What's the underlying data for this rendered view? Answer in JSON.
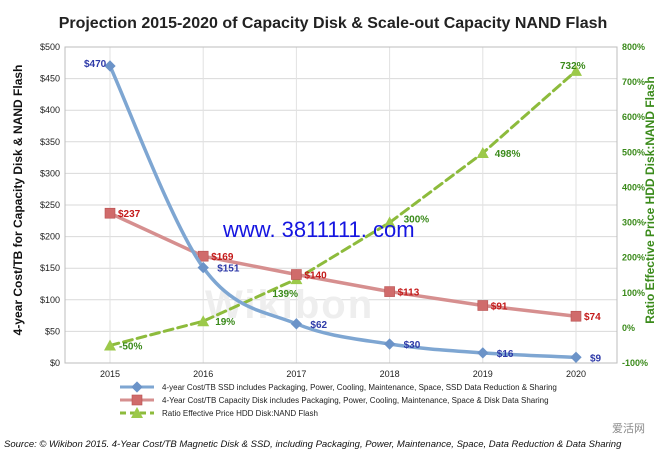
{
  "chart_data": {
    "type": "line",
    "title": "Projection 2015-2020 of Capacity Disk & Scale-out Capacity NAND Flash",
    "ylabel_left": "4-year Cost/TB for Capacity Disk & NAND Flash",
    "ylabel_right": "Ratio Effective Price HDD Disk:NAND Flash",
    "categories": [
      "2015",
      "2016",
      "2017",
      "2018",
      "2019",
      "2020"
    ],
    "left_ticks": [
      "$0",
      "$50",
      "$100",
      "$150",
      "$200",
      "$250",
      "$300",
      "$350",
      "$400",
      "$450",
      "$500"
    ],
    "right_ticks": [
      "-100%",
      "0%",
      "100%",
      "200%",
      "300%",
      "400%",
      "500%",
      "600%",
      "700%",
      "800%"
    ],
    "ylim_left": [
      0,
      500
    ],
    "ylim_right": [
      -100,
      800
    ],
    "grid": true,
    "legend_position": "bottom",
    "series": [
      {
        "name": "4-year Cost/TB SSD includes Packaging, Power, Cooling, Maintenance, Space, SSD Data Reduction & Sharing",
        "axis": "left",
        "values": [
          470,
          151,
          62,
          30,
          16,
          9
        ],
        "labels": [
          "$470",
          "$151",
          "$62",
          "$30",
          "$16",
          "$9"
        ],
        "color": "#7ea6d2",
        "marker_color": "#6b93c8",
        "label_color": "#2e3aa8"
      },
      {
        "name": "4-Year Cost/TB Capacity Disk includes Packaging, Power, Cooling, Maintenance, Space & Disk Data Sharing",
        "axis": "left",
        "values": [
          237,
          169,
          140,
          113,
          91,
          74
        ],
        "labels": [
          "$237",
          "$169",
          "$140",
          "$113",
          "$91",
          "$74"
        ],
        "color": "#d68f8f",
        "marker_color": "#d06b6b",
        "label_color": "#c41a1a"
      },
      {
        "name": "Ratio Effective Price HDD Disk:NAND Flash",
        "axis": "right",
        "values": [
          -50,
          19,
          139,
          300,
          498,
          732
        ],
        "labels": [
          "-50%",
          "19%",
          "139%",
          "300%",
          "498%",
          "732%"
        ],
        "color": "#8dbb3c",
        "marker_color": "#9cc94a",
        "label_color": "#3a8a1a"
      }
    ]
  },
  "watermark_text": "www. 3811111. com",
  "logo_text": "Wikibon",
  "corner_logo_text": "爱活网",
  "source_text": "Source: © Wikibon 2015. 4-Year Cost/TB Magnetic Disk & SSD, including Packaging, Power, Maintenance, Space, Data Reduction & Data Sharing"
}
